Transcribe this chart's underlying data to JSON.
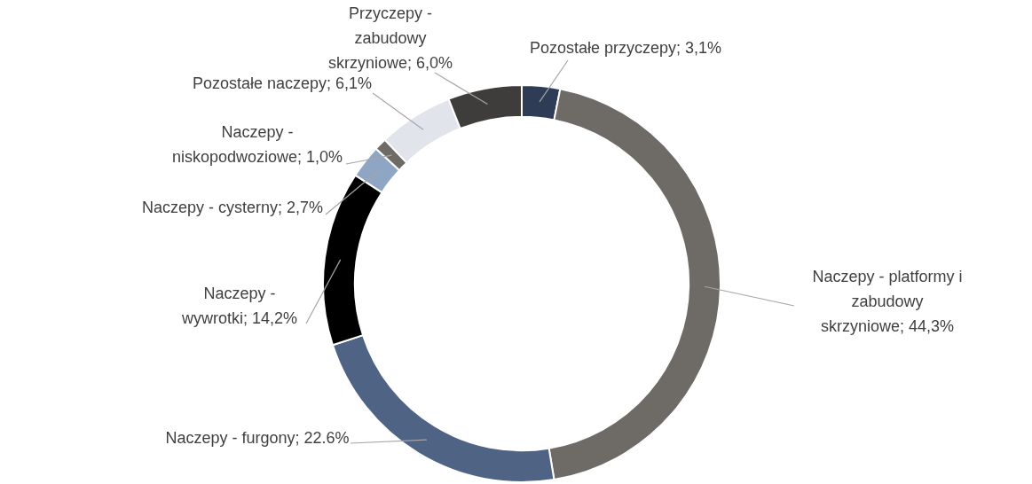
{
  "chart_data": {
    "type": "donut",
    "categories": [
      "Pozostałe przyczepy",
      "Naczepy - platformy i zabudowy skrzyniowe",
      "Naczepy - furgony",
      "Naczepy - wywrotki",
      "Naczepy - cysterny",
      "Naczepy - niskopodwoziowe",
      "Pozostałe naczepy",
      "Przyczepy - zabudowy skrzyniowe"
    ],
    "values": [
      3.1,
      44.3,
      22.6,
      14.2,
      2.7,
      1.0,
      6.1,
      6.0
    ],
    "value_labels": [
      "3,1%",
      "44,3%",
      "22.6%",
      "14,2%",
      "2,7%",
      "1,0%",
      "6,1%",
      "6,0%"
    ],
    "colors": [
      "#2e3d55",
      "#6e6a66",
      "#4f6385",
      "#000000",
      "#8fa5c4",
      "#6e6a66",
      "#e1e4ea",
      "#3f3d3b"
    ]
  }
}
